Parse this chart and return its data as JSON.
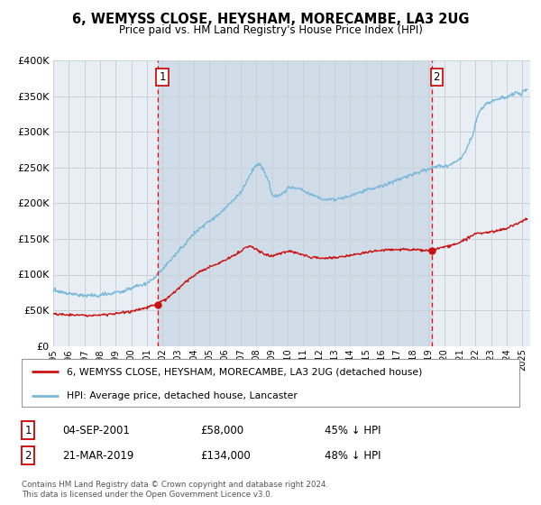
{
  "title": "6, WEMYSS CLOSE, HEYSHAM, MORECAMBE, LA3 2UG",
  "subtitle": "Price paid vs. HM Land Registry's House Price Index (HPI)",
  "legend_entry1": "6, WEMYSS CLOSE, HEYSHAM, MORECAMBE, LA3 2UG (detached house)",
  "legend_entry2": "HPI: Average price, detached house, Lancaster",
  "marker1_date": "04-SEP-2001",
  "marker1_price": 58000,
  "marker1_label": "45% ↓ HPI",
  "marker1_year": 2001.67,
  "marker2_date": "21-MAR-2019",
  "marker2_price": 134000,
  "marker2_label": "48% ↓ HPI",
  "marker2_year": 2019.21,
  "footer1": "Contains HM Land Registry data © Crown copyright and database right 2024.",
  "footer2": "This data is licensed under the Open Government Licence v3.0.",
  "hpi_color": "#7ab8d9",
  "price_color": "#cc1111",
  "grid_color": "#c8d0d8",
  "background_color": "#e8eef4",
  "shade_color": "#d0dce8",
  "ylim": [
    0,
    400000
  ],
  "xlim_start": 1995.0,
  "xlim_end": 2025.5,
  "yticks": [
    0,
    50000,
    100000,
    150000,
    200000,
    250000,
    300000,
    350000,
    400000
  ],
  "ylabel_fmt": [
    "£0",
    "£50K",
    "£100K",
    "£150K",
    "£200K",
    "£250K",
    "£300K",
    "£350K",
    "£400K"
  ]
}
